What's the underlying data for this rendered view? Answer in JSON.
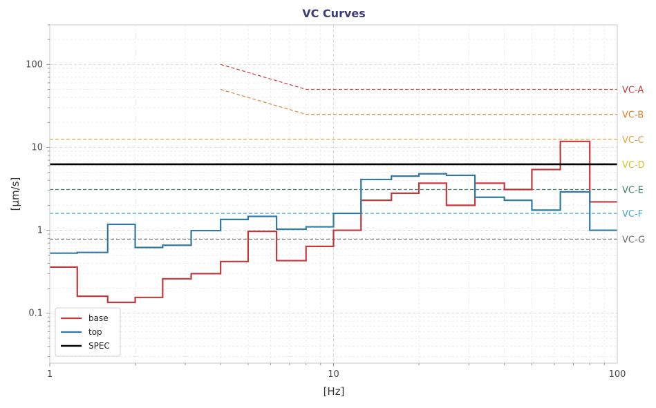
{
  "chart_data": {
    "type": "line",
    "title": "VC Curves",
    "xlabel": "[Hz]",
    "ylabel": "[μm/s]",
    "x_scale": "log",
    "y_scale": "log",
    "xlim": [
      1,
      100
    ],
    "ylim": [
      0.025,
      300
    ],
    "x_ticks": [
      {
        "value": 1,
        "label": "1"
      },
      {
        "value": 10,
        "label": "10"
      },
      {
        "value": 100,
        "label": "100"
      }
    ],
    "y_ticks": [
      {
        "value": 0.1,
        "label": "0.1"
      },
      {
        "value": 1,
        "label": "1"
      },
      {
        "value": 10,
        "label": "10"
      },
      {
        "value": 100,
        "label": "100"
      }
    ],
    "grid": true,
    "legend_position": "bottom-left",
    "series": [
      {
        "name": "base",
        "color": "#c0393b",
        "style": "step",
        "edges": [
          1,
          1.25,
          1.6,
          2,
          2.5,
          3.15,
          4,
          5,
          6.3,
          8,
          10,
          12.5,
          16,
          20,
          25,
          31.5,
          40,
          50,
          63,
          80,
          100
        ],
        "values": [
          0.36,
          0.16,
          0.135,
          0.155,
          0.26,
          0.3,
          0.42,
          0.97,
          0.43,
          0.64,
          1.0,
          2.3,
          2.8,
          3.7,
          2.0,
          3.7,
          3.1,
          5.4,
          11.8,
          2.2
        ]
      },
      {
        "name": "top",
        "color": "#2f7aa3",
        "style": "step",
        "edges": [
          1,
          1.25,
          1.6,
          2,
          2.5,
          3.15,
          4,
          5,
          6.3,
          8,
          10,
          12.5,
          16,
          20,
          25,
          31.5,
          40,
          50,
          63,
          80,
          100
        ],
        "values": [
          0.53,
          0.54,
          1.18,
          0.62,
          0.66,
          0.99,
          1.35,
          1.47,
          1.03,
          1.1,
          1.6,
          4.1,
          4.5,
          4.8,
          4.6,
          2.5,
          2.3,
          1.75,
          2.9,
          1.0
        ]
      },
      {
        "name": "SPEC",
        "color": "#000000",
        "style": "solid",
        "x": [
          1,
          100
        ],
        "values": [
          6.25,
          6.25
        ]
      }
    ],
    "reference_curves": [
      {
        "label": "VC-A",
        "color": "#c0393b",
        "x": [
          4,
          8,
          100
        ],
        "values": [
          100,
          50,
          50
        ]
      },
      {
        "label": "VC-B",
        "color": "#d9822b",
        "x": [
          4,
          8,
          100
        ],
        "values": [
          50,
          25,
          25
        ]
      },
      {
        "label": "VC-C",
        "color": "#e8a33d",
        "x": [
          1,
          100
        ],
        "values": [
          12.5,
          12.5
        ]
      },
      {
        "label": "VC-D",
        "color": "#d4c22a",
        "x": [
          1,
          100
        ],
        "values": [
          6.25,
          6.25
        ]
      },
      {
        "label": "VC-E",
        "color": "#3a7a6a",
        "x": [
          1,
          100
        ],
        "values": [
          3.1,
          3.1
        ]
      },
      {
        "label": "VC-F",
        "color": "#4aa3c8",
        "x": [
          1,
          100
        ],
        "values": [
          1.6,
          1.6
        ]
      },
      {
        "label": "VC-G",
        "color": "#666666",
        "x": [
          1,
          100
        ],
        "values": [
          0.78,
          0.78
        ]
      }
    ]
  }
}
